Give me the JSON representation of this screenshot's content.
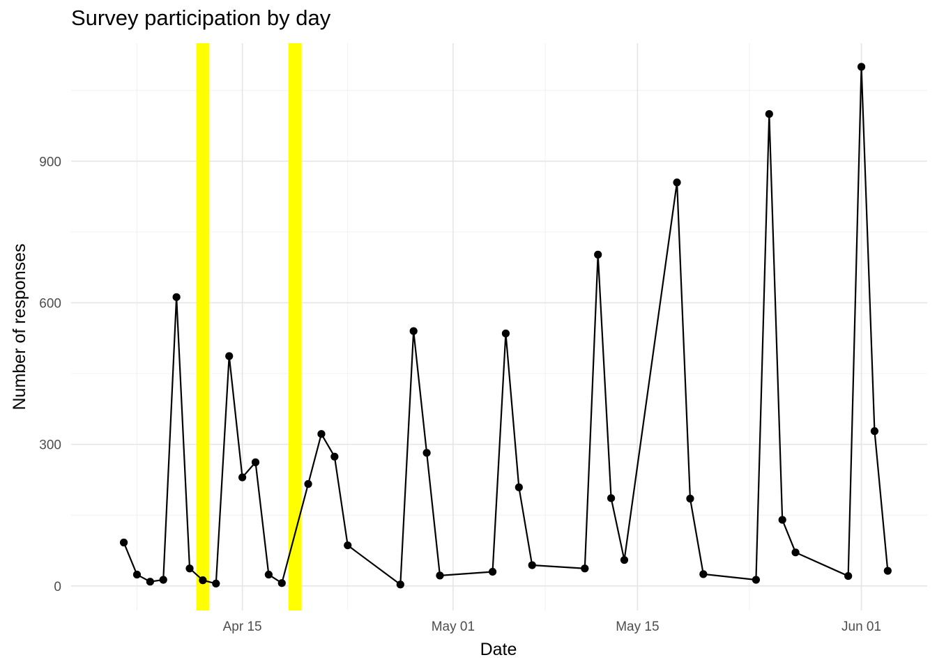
{
  "chart_data": {
    "type": "line",
    "title": "Survey participation by day",
    "xlabel": "Date",
    "ylabel": "Number of responses",
    "x_ticks": [
      {
        "date": "2020-04-15",
        "label": "Apr 15"
      },
      {
        "date": "2020-05-01",
        "label": "May 01"
      },
      {
        "date": "2020-05-15",
        "label": "May 15"
      },
      {
        "date": "2020-06-01",
        "label": "Jun 01"
      }
    ],
    "y_ticks": [
      0,
      300,
      600,
      900
    ],
    "xlim": [
      "2020-04-02",
      "2020-06-06"
    ],
    "ylim": [
      -52,
      1150
    ],
    "grid": true,
    "highlight_dates": [
      "2020-04-12",
      "2020-04-19"
    ],
    "highlight_color": "#ffff00",
    "line_color": "#000000",
    "series": [
      {
        "points": [
          {
            "x": "2020-04-06",
            "y": 92
          },
          {
            "x": "2020-04-07",
            "y": 24
          },
          {
            "x": "2020-04-08",
            "y": 9
          },
          {
            "x": "2020-04-09",
            "y": 13
          },
          {
            "x": "2020-04-10",
            "y": 612
          },
          {
            "x": "2020-04-11",
            "y": 37
          },
          {
            "x": "2020-04-12",
            "y": 12
          },
          {
            "x": "2020-04-13",
            "y": 5
          },
          {
            "x": "2020-04-14",
            "y": 487
          },
          {
            "x": "2020-04-15",
            "y": 230
          },
          {
            "x": "2020-04-16",
            "y": 262
          },
          {
            "x": "2020-04-17",
            "y": 24
          },
          {
            "x": "2020-04-18",
            "y": 6
          },
          {
            "x": "2020-04-20",
            "y": 216
          },
          {
            "x": "2020-04-21",
            "y": 322
          },
          {
            "x": "2020-04-22",
            "y": 274
          },
          {
            "x": "2020-04-23",
            "y": 86
          },
          {
            "x": "2020-04-27",
            "y": 3
          },
          {
            "x": "2020-04-28",
            "y": 540
          },
          {
            "x": "2020-04-29",
            "y": 282
          },
          {
            "x": "2020-04-30",
            "y": 22
          },
          {
            "x": "2020-05-04",
            "y": 30
          },
          {
            "x": "2020-05-05",
            "y": 535
          },
          {
            "x": "2020-05-06",
            "y": 209
          },
          {
            "x": "2020-05-07",
            "y": 44
          },
          {
            "x": "2020-05-11",
            "y": 37
          },
          {
            "x": "2020-05-12",
            "y": 702
          },
          {
            "x": "2020-05-13",
            "y": 186
          },
          {
            "x": "2020-05-14",
            "y": 55
          },
          {
            "x": "2020-05-18",
            "y": 855
          },
          {
            "x": "2020-05-19",
            "y": 185
          },
          {
            "x": "2020-05-20",
            "y": 25
          },
          {
            "x": "2020-05-24",
            "y": 13
          },
          {
            "x": "2020-05-25",
            "y": 1000
          },
          {
            "x": "2020-05-26",
            "y": 140
          },
          {
            "x": "2020-05-27",
            "y": 71
          },
          {
            "x": "2020-05-31",
            "y": 21
          },
          {
            "x": "2020-06-01",
            "y": 1100
          },
          {
            "x": "2020-06-02",
            "y": 328
          },
          {
            "x": "2020-06-03",
            "y": 32
          }
        ]
      }
    ]
  }
}
